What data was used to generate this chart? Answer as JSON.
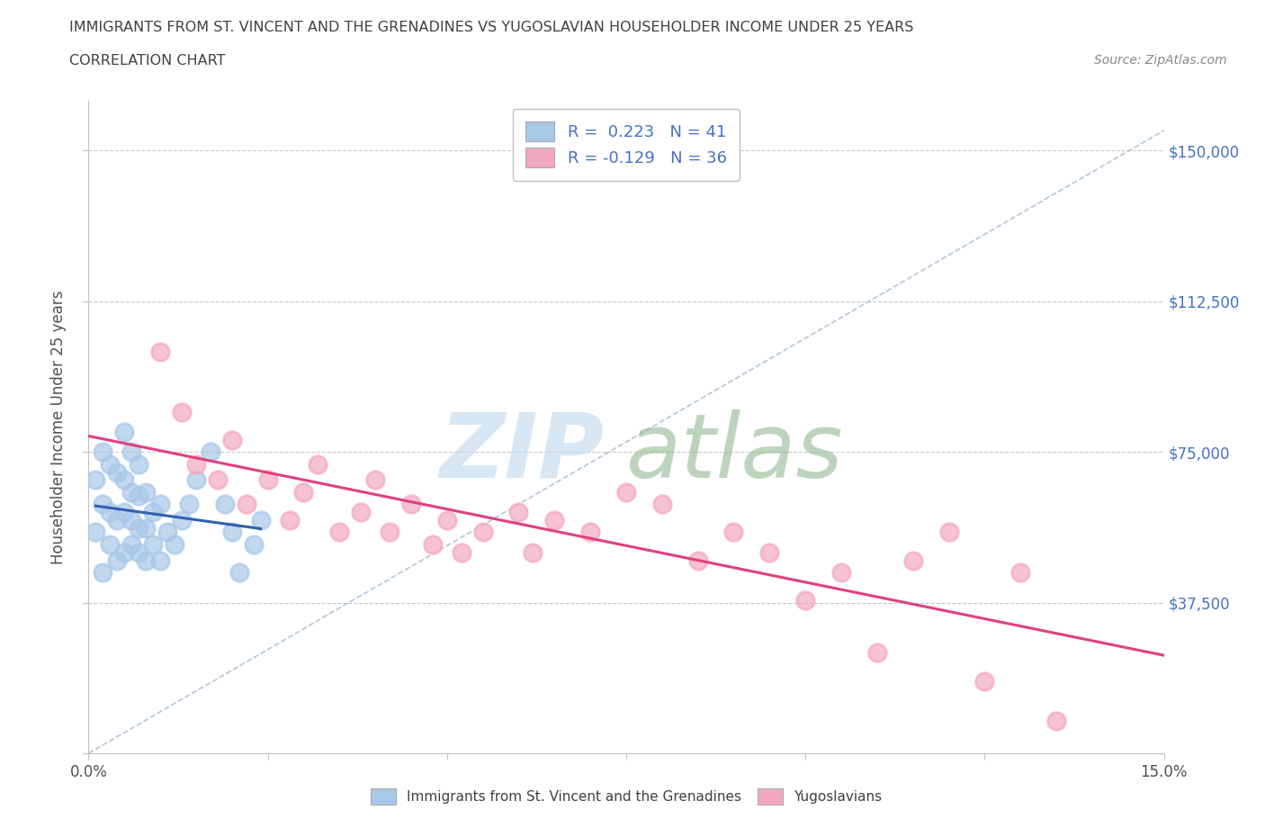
{
  "title": "IMMIGRANTS FROM ST. VINCENT AND THE GRENADINES VS YUGOSLAVIAN HOUSEHOLDER INCOME UNDER 25 YEARS",
  "subtitle": "CORRELATION CHART",
  "source": "Source: ZipAtlas.com",
  "ylabel": "Householder Income Under 25 years",
  "xlim": [
    0.0,
    0.15
  ],
  "ylim": [
    0,
    162500
  ],
  "xticks": [
    0.0,
    0.025,
    0.05,
    0.075,
    0.1,
    0.125,
    0.15
  ],
  "ytick_positions": [
    0,
    37500,
    75000,
    112500,
    150000
  ],
  "ytick_labels": [
    "",
    "$37,500",
    "$75,000",
    "$112,500",
    "$150,000"
  ],
  "blue_r": 0.223,
  "blue_n": 41,
  "pink_r": -0.129,
  "pink_n": 36,
  "legend_label1": "Immigrants from St. Vincent and the Grenadines",
  "legend_label2": "Yugoslavians",
  "blue_color": "#a8c8e8",
  "pink_color": "#f4a8c0",
  "blue_line_color": "#3060b0",
  "pink_line_color": "#e04080",
  "dashed_line_color": "#a0b8d0",
  "background_color": "#ffffff",
  "grid_color": "#c8c8c8",
  "title_color": "#404040",
  "axis_label_color": "#505050",
  "tick_color_right": "#4472c4",
  "blue_scatter_x": [
    0.001,
    0.001,
    0.002,
    0.002,
    0.002,
    0.003,
    0.003,
    0.003,
    0.004,
    0.004,
    0.004,
    0.005,
    0.005,
    0.005,
    0.005,
    0.006,
    0.006,
    0.006,
    0.006,
    0.007,
    0.007,
    0.007,
    0.007,
    0.008,
    0.008,
    0.008,
    0.009,
    0.009,
    0.01,
    0.01,
    0.011,
    0.012,
    0.013,
    0.014,
    0.015,
    0.017,
    0.019,
    0.02,
    0.021,
    0.023,
    0.024
  ],
  "blue_scatter_y": [
    55000,
    68000,
    45000,
    62000,
    75000,
    52000,
    60000,
    72000,
    48000,
    58000,
    70000,
    50000,
    60000,
    68000,
    80000,
    52000,
    58000,
    65000,
    75000,
    50000,
    56000,
    64000,
    72000,
    48000,
    56000,
    65000,
    52000,
    60000,
    48000,
    62000,
    55000,
    52000,
    58000,
    62000,
    68000,
    75000,
    62000,
    55000,
    45000,
    52000,
    58000
  ],
  "pink_scatter_x": [
    0.01,
    0.013,
    0.015,
    0.018,
    0.02,
    0.022,
    0.025,
    0.028,
    0.03,
    0.032,
    0.035,
    0.038,
    0.04,
    0.042,
    0.045,
    0.048,
    0.05,
    0.052,
    0.055,
    0.06,
    0.062,
    0.065,
    0.07,
    0.075,
    0.08,
    0.085,
    0.09,
    0.095,
    0.1,
    0.105,
    0.11,
    0.115,
    0.12,
    0.125,
    0.13,
    0.135
  ],
  "pink_scatter_y": [
    100000,
    85000,
    72000,
    68000,
    78000,
    62000,
    68000,
    58000,
    65000,
    72000,
    55000,
    60000,
    68000,
    55000,
    62000,
    52000,
    58000,
    50000,
    55000,
    60000,
    50000,
    58000,
    55000,
    65000,
    62000,
    48000,
    55000,
    50000,
    38000,
    45000,
    25000,
    48000,
    55000,
    18000,
    45000,
    8000
  ],
  "watermark_zip_color": "#c8ddf0",
  "watermark_atlas_color": "#90b890"
}
